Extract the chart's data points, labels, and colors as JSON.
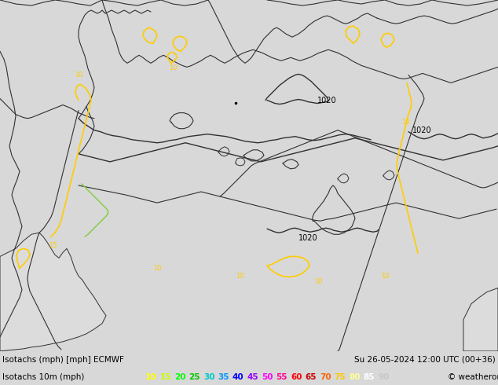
{
  "title_line1": "Isotachs (mph) [mph] ECMWF",
  "title_line2": "Isotachs 10m (mph)",
  "date_str": "Su 26-05-2024 12:00 UTC (00+36)",
  "copyright": "© weatheronline.co.uk",
  "map_bg": "#b8ee88",
  "sea_bg": "#dcdcdc",
  "bottom_bar_color": "#d8d8d8",
  "border_color": "#303030",
  "contour_yellow": "#ffcc00",
  "contour_green": "#00dd00",
  "pressure_color": "#000000",
  "legend_values": [
    10,
    15,
    20,
    25,
    30,
    35,
    40,
    45,
    50,
    55,
    60,
    65,
    70,
    75,
    80,
    85,
    90
  ],
  "legend_colors": [
    "#ffff00",
    "#c8ff00",
    "#00ff00",
    "#00c800",
    "#00c8c8",
    "#0096ff",
    "#0000ff",
    "#9600ff",
    "#ff00ff",
    "#ff0096",
    "#ff0000",
    "#c80000",
    "#ff6400",
    "#ffc800",
    "#ffff96",
    "#ffffff",
    "#c8c8c8"
  ],
  "figsize": [
    6.34,
    4.9
  ],
  "dpi": 100
}
